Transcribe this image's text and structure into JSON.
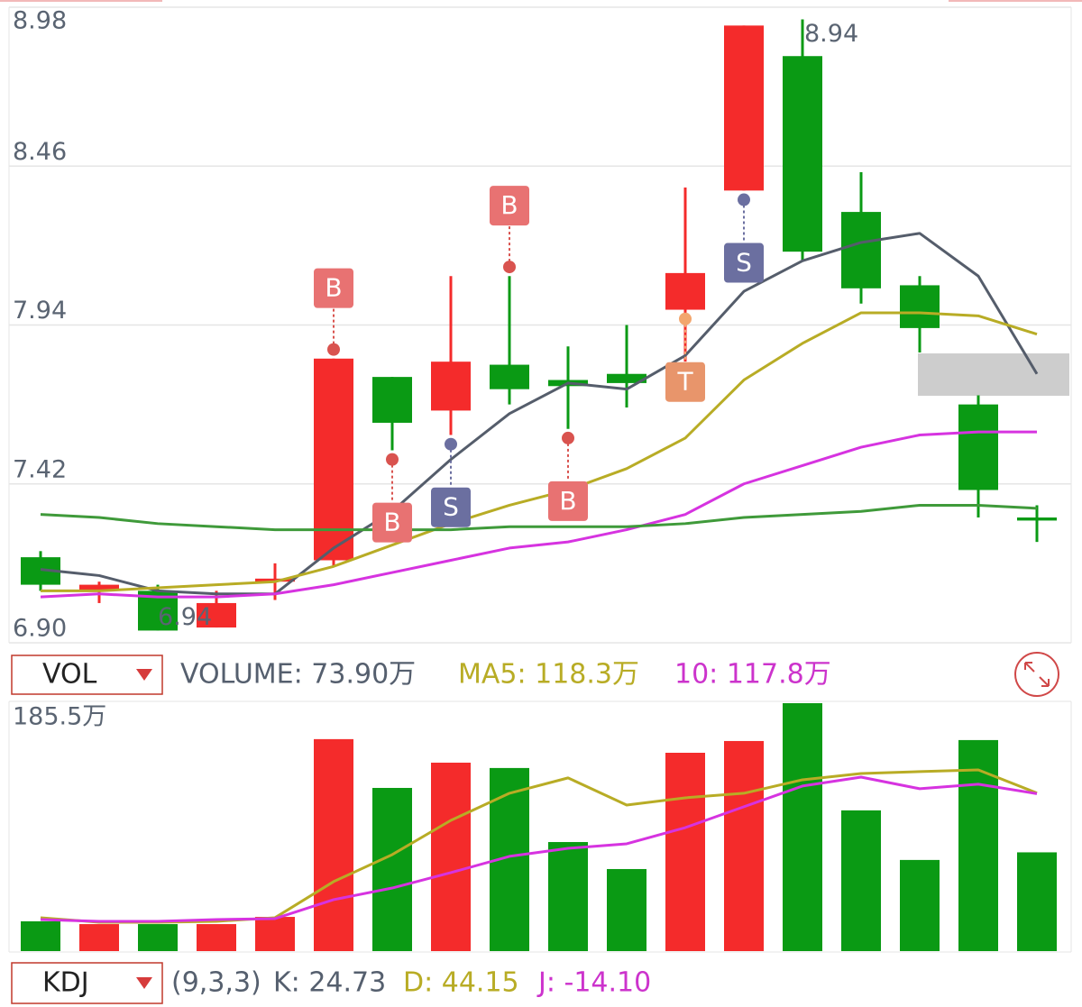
{
  "chart_data": [
    {
      "type": "candlestick",
      "open": [
        7.18,
        7.07,
        7.07,
        6.95,
        7.1,
        7.17,
        7.77,
        7.66,
        7.81,
        7.76,
        7.78,
        7.99,
        8.38,
        8.82,
        8.31,
        8.07,
        7.68,
        7.31
      ],
      "high": [
        7.2,
        7.1,
        7.09,
        7.07,
        7.16,
        7.83,
        7.77,
        8.1,
        8.1,
        7.87,
        7.94,
        8.39,
        8.92,
        8.94,
        8.44,
        8.1,
        7.71,
        7.35
      ],
      "low": [
        7.07,
        7.03,
        6.94,
        6.95,
        7.04,
        7.15,
        7.53,
        7.58,
        7.68,
        7.6,
        7.67,
        7.82,
        8.38,
        8.15,
        8.01,
        7.85,
        7.31,
        7.23
      ],
      "close": [
        7.09,
        7.09,
        6.94,
        7.03,
        7.11,
        7.83,
        7.62,
        7.82,
        7.73,
        7.74,
        7.75,
        8.11,
        8.92,
        8.18,
        8.06,
        7.93,
        7.4,
        7.3
      ],
      "up_color": "#f42b2b",
      "down_color": "#0a9a14",
      "series": [
        {
          "color": "#555d6b",
          "values": [
            7.14,
            7.12,
            7.07,
            7.06,
            7.06,
            7.21,
            7.33,
            7.5,
            7.65,
            7.75,
            7.73,
            7.84,
            8.05,
            8.15,
            8.21,
            8.24,
            8.1,
            7.78
          ]
        },
        {
          "color": "#b8ac25",
          "values": [
            7.07,
            7.07,
            7.08,
            7.09,
            7.1,
            7.15,
            7.22,
            7.29,
            7.35,
            7.4,
            7.47,
            7.57,
            7.76,
            7.88,
            7.98,
            7.98,
            7.97,
            7.91
          ]
        },
        {
          "color": "#d633e0",
          "values": [
            7.05,
            7.06,
            7.05,
            7.05,
            7.06,
            7.09,
            7.13,
            7.17,
            7.21,
            7.23,
            7.27,
            7.32,
            7.42,
            7.48,
            7.54,
            7.58,
            7.59,
            7.59
          ]
        },
        {
          "color": "#3f9a3a",
          "values": [
            7.32,
            7.31,
            7.29,
            7.28,
            7.27,
            7.27,
            7.27,
            7.27,
            7.28,
            7.28,
            7.28,
            7.29,
            7.31,
            7.32,
            7.33,
            7.35,
            7.35,
            7.34
          ]
        }
      ],
      "markers": [
        {
          "index": 5,
          "label": "B",
          "value": 7.86,
          "side": "above",
          "color": "#e87272",
          "dot_color": "#d9534f"
        },
        {
          "index": 6,
          "label": "B",
          "value": 7.5,
          "side": "below",
          "color": "#e87272",
          "dot_color": "#d9534f"
        },
        {
          "index": 7,
          "label": "S",
          "value": 7.55,
          "side": "below",
          "color": "#6b6fa0",
          "dot_color": "#6b6fa0"
        },
        {
          "index": 8,
          "label": "B",
          "value": 8.13,
          "side": "above",
          "color": "#e87272",
          "dot_color": "#d9534f"
        },
        {
          "index": 9,
          "label": "B",
          "value": 7.57,
          "side": "below",
          "color": "#e87272",
          "dot_color": "#d9534f"
        },
        {
          "index": 11,
          "label": "T",
          "value": 7.96,
          "side": "below",
          "color": "#e8956b",
          "dot_color": "#f2a66e"
        },
        {
          "index": 12,
          "label": "S",
          "value": 8.35,
          "side": "below",
          "color": "#6b6fa0",
          "dot_color": "#6b6fa0"
        }
      ],
      "high_mark": {
        "index": 13,
        "value": 8.94
      },
      "low_mark": {
        "index": 2,
        "value": 6.94
      },
      "ylim": [
        6.9,
        8.98
      ],
      "yticks": [
        8.98,
        8.46,
        7.94,
        7.42,
        {
          "value": 6.9,
          "label": "6.90"
        }
      ],
      "grid": true
    },
    {
      "type": "bar",
      "values": [
        22.3,
        20.2,
        20.2,
        20.2,
        25.6,
        158.6,
        122.1,
        141.0,
        137.0,
        81.6,
        61.4,
        148.4,
        157.2,
        185.5,
        105.3,
        68.2,
        157.9,
        73.9
      ],
      "colors": [
        "#0a9a14",
        "#f42b2b",
        "#0a9a14",
        "#f42b2b",
        "#f42b2b",
        "#f42b2b",
        "#0a9a14",
        "#f42b2b",
        "#0a9a14",
        "#0a9a14",
        "#0a9a14",
        "#f42b2b",
        "#f42b2b",
        "#0a9a14",
        "#0a9a14",
        "#0a9a14",
        "#0a9a14",
        "#0a9a14"
      ],
      "series": [
        {
          "color": "#b8ac25",
          "values": [
            25.0,
            21.6,
            21.6,
            22.3,
            25.0,
            52.0,
            72.2,
            97.8,
            118.1,
            129.6,
            109.3,
            114.7,
            118.1,
            128.2,
            132.9,
            134.3,
            135.6,
            118.3
          ]
        },
        {
          "color": "#d633e0",
          "values": [
            23.6,
            22.3,
            22.3,
            23.6,
            24.3,
            38.5,
            47.2,
            58.7,
            70.9,
            76.9,
            80.3,
            92.4,
            108.0,
            123.5,
            130.2,
            121.5,
            124.9,
            117.8
          ]
        }
      ],
      "ylim": [
        0,
        185.5
      ],
      "yticks": [
        {
          "value": 185.5,
          "label": "185.5万"
        }
      ]
    }
  ],
  "vol_header": {
    "selector": "VOL",
    "volume": "VOLUME: 73.90万",
    "ma5": "MA5: 118.3万",
    "ma10": "10: 117.8万"
  },
  "kdj_header": {
    "selector": "KDJ",
    "params": "(9,3,3)",
    "k": "K: 24.73",
    "d": "D: 44.15",
    "j": "J: -14.10"
  }
}
